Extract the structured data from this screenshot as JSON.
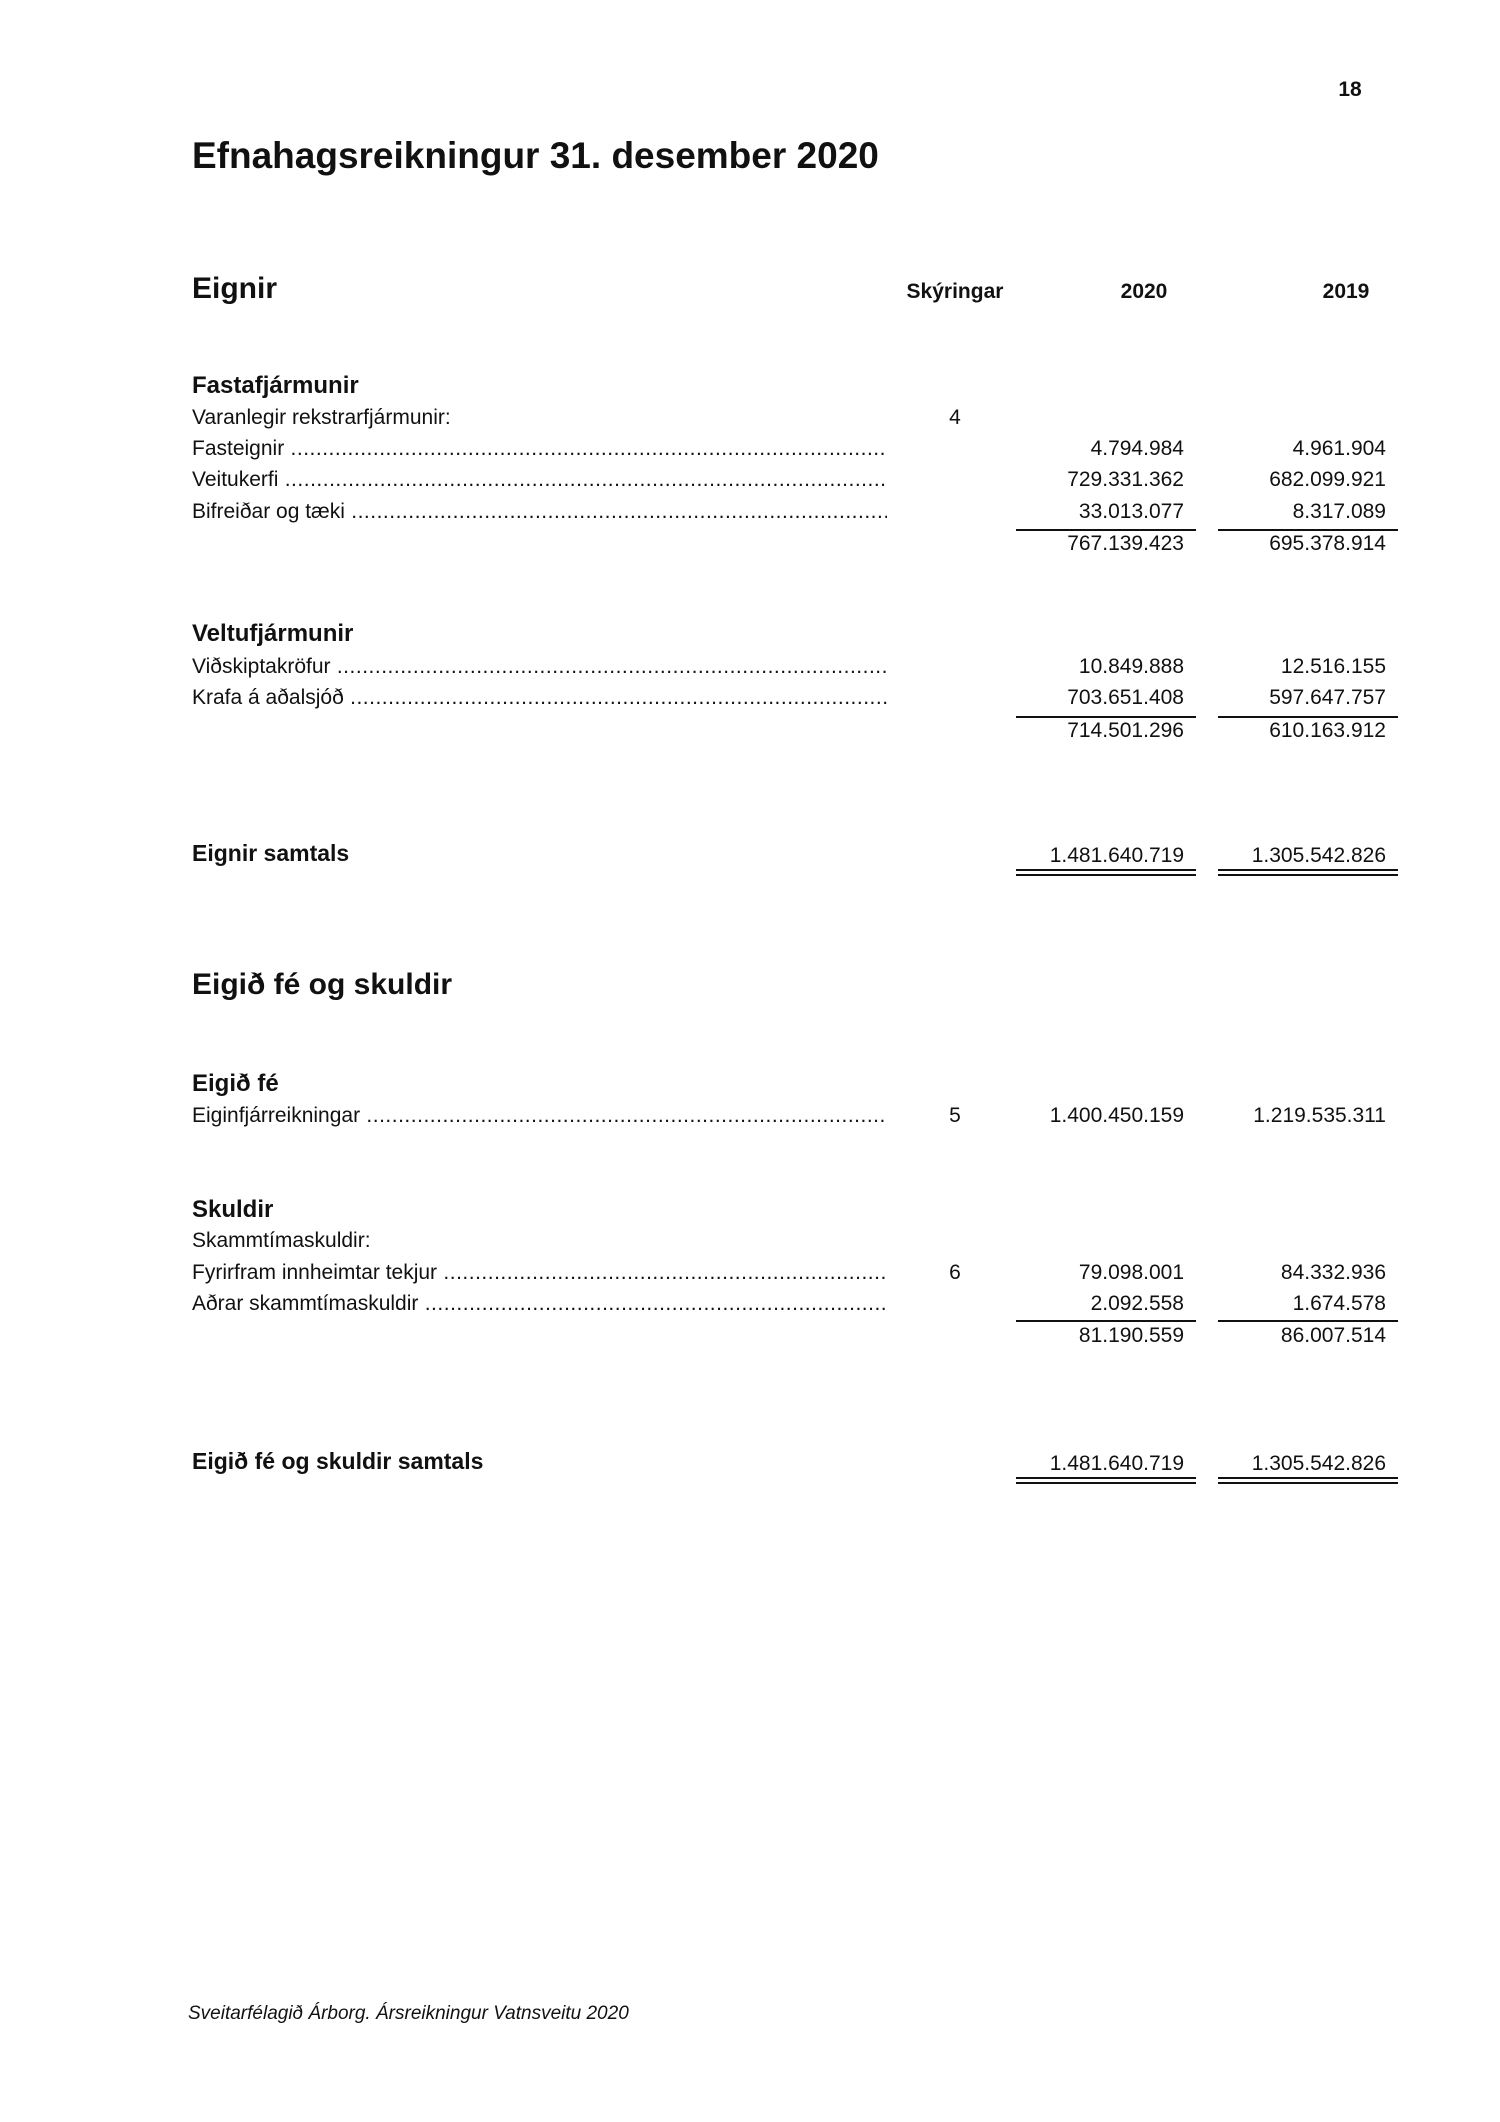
{
  "page_number": "18",
  "title": "Efnahagsreikningur 31. desember 2020",
  "assets": {
    "heading": "Eignir",
    "columns": {
      "notes": "Skýringar",
      "y1": "2020",
      "y2": "2019"
    },
    "fixed": {
      "heading": "Fastafjármunir",
      "subheading": "Varanlegir rekstrarfjármunir:",
      "subheading_note": "4",
      "rows": [
        {
          "label": "Fasteignir",
          "v2020": "4.794.984",
          "v2019": "4.961.904"
        },
        {
          "label": "Veitukerfi",
          "v2020": "729.331.362",
          "v2019": "682.099.921"
        },
        {
          "label": "Bifreiðar og tæki",
          "v2020": "33.013.077",
          "v2019": "8.317.089"
        }
      ],
      "total": {
        "v2020": "767.139.423",
        "v2019": "695.378.914"
      }
    },
    "current": {
      "heading": "Veltufjármunir",
      "rows": [
        {
          "label": "Viðskiptakröfur",
          "v2020": "10.849.888",
          "v2019": "12.516.155"
        },
        {
          "label": "Krafa á aðalsjóð",
          "v2020": "703.651.408",
          "v2019": "597.647.757"
        }
      ],
      "total": {
        "v2020": "714.501.296",
        "v2019": "610.163.912"
      }
    },
    "grand_total": {
      "label": "Eignir samtals",
      "v2020": "1.481.640.719",
      "v2019": "1.305.542.826"
    }
  },
  "equity_liabilities": {
    "heading": "Eigið fé og skuldir",
    "equity": {
      "heading": "Eigið fé",
      "rows": [
        {
          "label": "Eiginfjárreikningar",
          "note": "5",
          "v2020": "1.400.450.159",
          "v2019": "1.219.535.311"
        }
      ]
    },
    "liabilities": {
      "heading": "Skuldir",
      "subheading": "Skammtímaskuldir:",
      "rows": [
        {
          "label": "Fyrirfram innheimtar tekjur",
          "note": "6",
          "v2020": "79.098.001",
          "v2019": "84.332.936"
        },
        {
          "label": "Aðrar skammtímaskuldir",
          "v2020": "2.092.558",
          "v2019": "1.674.578"
        }
      ],
      "total": {
        "v2020": "81.190.559",
        "v2019": "86.007.514"
      }
    },
    "grand_total": {
      "label": "Eigið fé og skuldir samtals",
      "v2020": "1.481.640.719",
      "v2019": "1.305.542.826"
    }
  },
  "footer": "Sveitarfélagið Árborg.  Ársreikningur Vatnsveitu 2020"
}
